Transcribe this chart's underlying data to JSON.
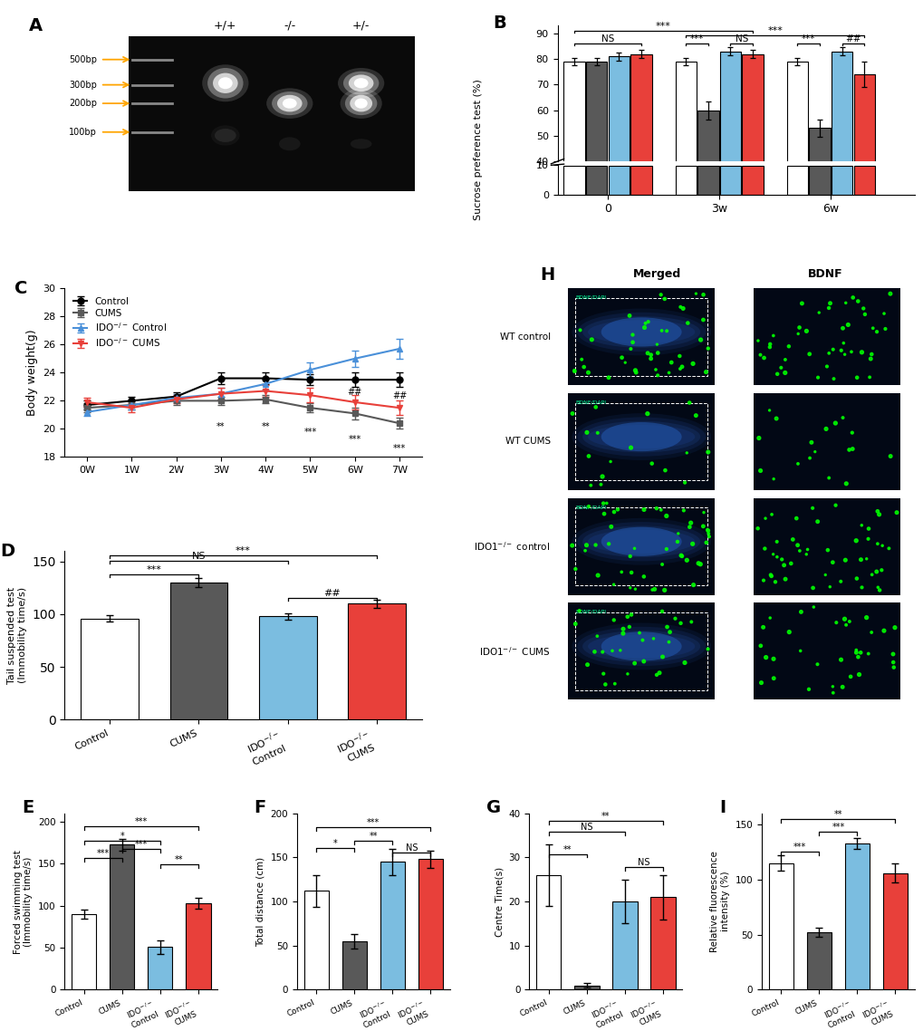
{
  "panel_B": {
    "groups": [
      "0",
      "3w",
      "6w"
    ],
    "values": {
      "0": [
        79,
        79,
        81,
        82
      ],
      "3w": [
        79,
        60,
        83,
        82
      ],
      "6w": [
        79,
        53,
        83,
        74
      ]
    },
    "errors": {
      "0": [
        1.5,
        1.5,
        1.5,
        1.5
      ],
      "3w": [
        1.5,
        3.5,
        1.5,
        1.5
      ],
      "6w": [
        1.5,
        3.5,
        1.5,
        5.0
      ]
    }
  },
  "panel_C": {
    "weeks": [
      "0W",
      "1W",
      "2W",
      "3W",
      "4W",
      "5W",
      "6W",
      "7W"
    ],
    "Control": [
      21.7,
      22.0,
      22.3,
      23.6,
      23.6,
      23.5,
      23.5,
      23.5
    ],
    "CUMS": [
      21.5,
      21.7,
      22.0,
      22.0,
      22.1,
      21.5,
      21.1,
      20.4
    ],
    "IDO_Control": [
      21.2,
      21.7,
      22.2,
      22.5,
      23.2,
      24.2,
      25.0,
      25.7
    ],
    "IDO_CUMS": [
      21.9,
      21.5,
      22.1,
      22.5,
      22.7,
      22.4,
      21.9,
      21.5
    ],
    "Control_err": [
      0.3,
      0.3,
      0.3,
      0.4,
      0.4,
      0.4,
      0.5,
      0.5
    ],
    "CUMS_err": [
      0.3,
      0.3,
      0.3,
      0.3,
      0.3,
      0.3,
      0.4,
      0.4
    ],
    "IDO_Control_err": [
      0.3,
      0.3,
      0.3,
      0.4,
      0.4,
      0.5,
      0.6,
      0.7
    ],
    "IDO_CUMS_err": [
      0.3,
      0.3,
      0.3,
      0.4,
      0.4,
      0.5,
      0.5,
      0.5
    ]
  },
  "panel_D": {
    "values": [
      96,
      130,
      98,
      110
    ],
    "errors": [
      3,
      4,
      3,
      4
    ]
  },
  "panel_E": {
    "values": [
      90,
      173,
      51,
      103
    ],
    "errors": [
      5,
      7,
      8,
      7
    ]
  },
  "panel_F": {
    "values": [
      112,
      55,
      145,
      148
    ],
    "errors": [
      18,
      8,
      15,
      10
    ]
  },
  "panel_G": {
    "values": [
      26,
      1,
      20,
      21
    ],
    "errors": [
      7,
      0.5,
      5,
      5
    ]
  },
  "panel_I": {
    "values": [
      115,
      52,
      133,
      106
    ],
    "errors": [
      7,
      4,
      5,
      9
    ]
  },
  "colors": {
    "control": "#FFFFFF",
    "cums": "#595959",
    "ido_control": "#7BBDE0",
    "ido_cums": "#E8403A"
  }
}
